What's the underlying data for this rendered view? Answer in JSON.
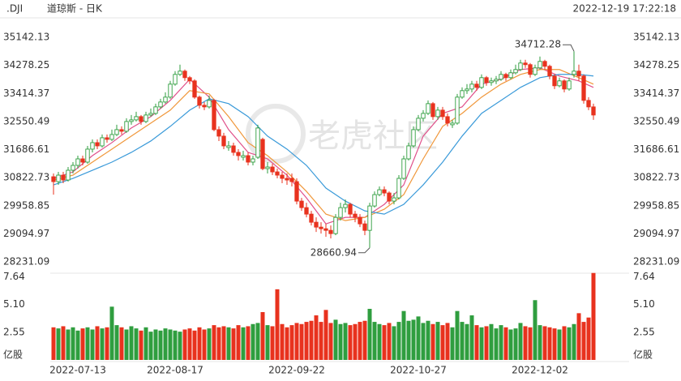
{
  "symbol": ".DJI",
  "title": "道琼斯 - 日K",
  "timestamp": "2022-12-19 17:22:18",
  "watermark": "老虎社区",
  "chart_data": [
    {
      "type": "candlestick",
      "up_color": "#2f9e3f",
      "down_color": "#e8321e",
      "categories": [
        "2022-07-13",
        null,
        null,
        null,
        null,
        null,
        null,
        null,
        null,
        null,
        null,
        null,
        null,
        null,
        null,
        null,
        null,
        null,
        null,
        null,
        null,
        null,
        null,
        null,
        null,
        "2022-08-17",
        null,
        null,
        null,
        null,
        null,
        null,
        null,
        null,
        null,
        null,
        null,
        null,
        null,
        null,
        null,
        null,
        null,
        null,
        null,
        null,
        null,
        null,
        null,
        null,
        "2022-09-22",
        null,
        null,
        null,
        null,
        null,
        null,
        null,
        null,
        null,
        null,
        null,
        null,
        null,
        null,
        null,
        null,
        null,
        null,
        null,
        null,
        null,
        null,
        null,
        null,
        "2022-10-27",
        null,
        null,
        null,
        null,
        null,
        null,
        null,
        null,
        null,
        null,
        null,
        null,
        null,
        null,
        null,
        null,
        null,
        null,
        null,
        null,
        null,
        null,
        null,
        null,
        "2022-12-02",
        null,
        null,
        null,
        null,
        null,
        null,
        null,
        null,
        null,
        null,
        null
      ],
      "open": [
        30850,
        30700,
        30900,
        30750,
        31050,
        31200,
        31400,
        31300,
        31700,
        31900,
        31800,
        32050,
        32000,
        32150,
        32300,
        32250,
        32550,
        32600,
        32700,
        32550,
        32750,
        32800,
        33000,
        33150,
        33300,
        33700,
        34000,
        34100,
        33900,
        33800,
        33300,
        33050,
        33000,
        33200,
        32300,
        32100,
        31750,
        31800,
        31600,
        31450,
        31500,
        31300,
        31450,
        32000,
        31100,
        31150,
        31000,
        30900,
        30800,
        30800,
        30700,
        30100,
        29900,
        29700,
        29450,
        29300,
        29250,
        29200,
        29100,
        29600,
        29900,
        30000,
        29700,
        29600,
        29400,
        29200,
        29950,
        30300,
        30450,
        30350,
        30100,
        30200,
        30800,
        31400,
        31800,
        32300,
        32650,
        32800,
        33100,
        32700,
        32900,
        32700,
        32450,
        32500,
        33300,
        33500,
        33550,
        33700,
        33600,
        33900,
        33750,
        33800,
        33850,
        34000,
        33900,
        34050,
        34150,
        34350,
        34300,
        34000,
        34200,
        34400,
        34250,
        33950,
        33650,
        33800,
        33550,
        34000,
        34100,
        33950,
        33200,
        33000
      ],
      "close": [
        30700,
        30900,
        30750,
        31050,
        31200,
        31400,
        31300,
        31700,
        31900,
        31800,
        32050,
        32000,
        32150,
        32300,
        32250,
        32550,
        32600,
        32700,
        32550,
        32750,
        32800,
        33000,
        33150,
        33300,
        33700,
        34000,
        34100,
        33900,
        33800,
        33300,
        33050,
        33000,
        33200,
        32300,
        32100,
        31800,
        31800,
        31600,
        31500,
        31500,
        31300,
        31400,
        32350,
        31100,
        31150,
        31000,
        30900,
        30800,
        30750,
        30700,
        30100,
        29900,
        29700,
        29450,
        29300,
        29250,
        29200,
        29100,
        29600,
        29900,
        30000,
        29700,
        29600,
        29400,
        29200,
        29950,
        30300,
        30450,
        30350,
        30100,
        30200,
        30800,
        31400,
        31800,
        32300,
        32650,
        32800,
        33100,
        32700,
        32900,
        32700,
        32500,
        32500,
        33300,
        33500,
        33550,
        33700,
        33600,
        33900,
        33750,
        33800,
        33850,
        34000,
        33900,
        34050,
        34150,
        34350,
        34300,
        34000,
        34200,
        34400,
        34250,
        33950,
        33650,
        33800,
        33550,
        33800,
        34100,
        33950,
        33200,
        33000,
        32750
      ],
      "high": [
        30950,
        31000,
        31000,
        31150,
        31300,
        31500,
        31500,
        31800,
        32000,
        32000,
        32150,
        32150,
        32300,
        32450,
        32400,
        32650,
        32750,
        32850,
        32750,
        32850,
        32950,
        33100,
        33250,
        33450,
        33800,
        34100,
        34300,
        34150,
        33950,
        33850,
        33350,
        33150,
        33350,
        33250,
        32400,
        32200,
        31950,
        31900,
        31700,
        31650,
        31600,
        31500,
        32450,
        32050,
        31300,
        31250,
        31100,
        31000,
        30950,
        30950,
        30800,
        30200,
        30050,
        29800,
        29600,
        29450,
        29400,
        29350,
        29700,
        30050,
        30150,
        30050,
        29800,
        29700,
        29500,
        30050,
        30400,
        30550,
        30550,
        30400,
        30350,
        30900,
        31500,
        31900,
        32400,
        32750,
        32900,
        33200,
        33150,
        33000,
        33000,
        32800,
        32600,
        33400,
        33600,
        33700,
        33800,
        33800,
        34000,
        33950,
        33900,
        33950,
        34100,
        34050,
        34150,
        34300,
        34450,
        34450,
        34350,
        34300,
        34550,
        34450,
        34300,
        34000,
        33900,
        33850,
        33900,
        34712.28,
        34300,
        34000,
        33300,
        33100
      ],
      "low": [
        30300,
        30600,
        30650,
        30700,
        30950,
        31100,
        31200,
        31250,
        31600,
        31700,
        31750,
        31900,
        31950,
        32100,
        32150,
        32200,
        32450,
        32550,
        32450,
        32500,
        32700,
        32750,
        32950,
        33100,
        33250,
        33650,
        33950,
        33800,
        33700,
        33250,
        32950,
        32900,
        32950,
        32250,
        31950,
        31700,
        31650,
        31500,
        31350,
        31350,
        31200,
        31200,
        31400,
        31050,
        30950,
        30900,
        30800,
        30650,
        30600,
        30550,
        30000,
        29800,
        29600,
        29350,
        29150,
        29100,
        29000,
        28950,
        29050,
        29500,
        29750,
        29600,
        29450,
        29300,
        29050,
        28660.94,
        29900,
        30250,
        30250,
        30000,
        30000,
        30150,
        30750,
        31350,
        31750,
        32250,
        32550,
        32750,
        32600,
        32600,
        32600,
        32400,
        32350,
        32450,
        33250,
        33400,
        33450,
        33500,
        33550,
        33650,
        33650,
        33700,
        33800,
        33800,
        33850,
        34000,
        34100,
        34200,
        33900,
        33950,
        34150,
        34150,
        33850,
        33550,
        33600,
        33450,
        33500,
        33900,
        33800,
        33100,
        32900,
        32600
      ],
      "series": [
        {
          "color": "#e0508a",
          "x": [
            0,
            4,
            8,
            12,
            16,
            20,
            24,
            28,
            32,
            36,
            40,
            44,
            48,
            52,
            56,
            60,
            64,
            68,
            72,
            76,
            80,
            84,
            88,
            92,
            96,
            100,
            104,
            108,
            111
          ],
          "values": [
            30800,
            31000,
            31500,
            31900,
            32350,
            32700,
            33200,
            33850,
            33300,
            32300,
            31600,
            31400,
            30900,
            30200,
            29400,
            29600,
            29600,
            30000,
            30600,
            32100,
            32800,
            33000,
            33700,
            33850,
            34150,
            34200,
            33950,
            33800,
            33600
          ]
        },
        {
          "color": "#f0973a",
          "x": [
            0,
            4,
            8,
            12,
            16,
            20,
            24,
            28,
            32,
            36,
            40,
            44,
            48,
            52,
            56,
            60,
            64,
            68,
            72,
            76,
            80,
            84,
            88,
            92,
            96,
            100,
            104,
            108,
            111
          ],
          "values": [
            30750,
            30900,
            31300,
            31700,
            32100,
            32500,
            32900,
            33500,
            33400,
            32700,
            31900,
            31500,
            31000,
            30400,
            29700,
            29500,
            29600,
            29850,
            30300,
            31400,
            32400,
            32800,
            33300,
            33700,
            34000,
            34150,
            34150,
            33900,
            33700
          ]
        },
        {
          "color": "#3a9ad9",
          "x": [
            0,
            4,
            8,
            12,
            16,
            20,
            24,
            28,
            32,
            36,
            40,
            44,
            48,
            52,
            56,
            60,
            64,
            68,
            72,
            76,
            80,
            84,
            88,
            92,
            96,
            100,
            104,
            108,
            111
          ],
          "values": [
            30600,
            30800,
            31050,
            31300,
            31600,
            31950,
            32400,
            32900,
            33250,
            33100,
            32700,
            32100,
            31700,
            31200,
            30500,
            30100,
            29800,
            29700,
            30000,
            30600,
            31300,
            32100,
            32800,
            33200,
            33600,
            33900,
            34000,
            34000,
            33950
          ]
        }
      ],
      "ylim": [
        28231.09,
        35142.13
      ],
      "yticks": [
        28231.09,
        29094.97,
        29958.85,
        30822.73,
        31686.61,
        32550.49,
        33414.37,
        34278.25,
        35142.13
      ]
    },
    {
      "type": "bar",
      "y_label": "亿股",
      "values": [
        3.0,
        2.9,
        3.1,
        2.8,
        3.0,
        2.7,
        2.9,
        3.0,
        2.8,
        3.1,
        2.9,
        3.0,
        4.9,
        3.2,
        3.0,
        2.8,
        3.1,
        2.9,
        2.7,
        3.0,
        2.6,
        2.8,
        2.7,
        2.9,
        2.8,
        2.7,
        2.6,
        2.8,
        2.9,
        2.7,
        3.0,
        2.8,
        2.9,
        3.2,
        3.0,
        3.1,
        3.0,
        2.9,
        3.2,
        3.0,
        3.1,
        3.3,
        3.4,
        4.4,
        3.2,
        3.1,
        6.5,
        3.3,
        3.0,
        3.2,
        3.4,
        3.3,
        3.5,
        3.6,
        4.1,
        3.5,
        4.6,
        3.4,
        3.7,
        3.3,
        3.4,
        3.2,
        3.3,
        3.5,
        3.6,
        4.7,
        3.5,
        3.3,
        3.2,
        3.4,
        3.1,
        3.5,
        4.5,
        3.6,
        3.7,
        4.0,
        3.4,
        3.6,
        3.3,
        3.5,
        3.2,
        3.4,
        3.0,
        4.5,
        3.5,
        3.3,
        4.1,
        3.2,
        3.0,
        3.1,
        3.3,
        2.9,
        3.2,
        3.0,
        2.8,
        2.9,
        3.4,
        3.1,
        3.0,
        5.5,
        3.2,
        3.1,
        3.0,
        2.9,
        2.8,
        3.1,
        3.0,
        3.3,
        4.3,
        3.5,
        3.9,
        8.0
      ],
      "ylim": [
        0,
        8.13
      ],
      "yticks": [
        2.55,
        {
          "value": 5.1,
          "label": "5.10"
        },
        7.64
      ]
    }
  ]
}
